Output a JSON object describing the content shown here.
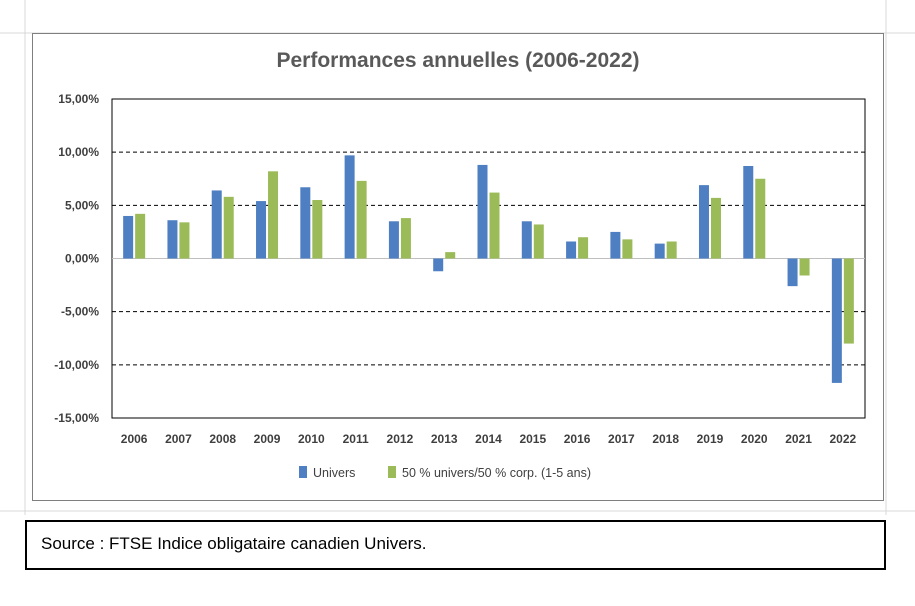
{
  "chart_data": {
    "type": "bar",
    "title": "Performances annuelles (2006-2022)",
    "categories": [
      "2006",
      "2007",
      "2008",
      "2009",
      "2010",
      "2011",
      "2012",
      "2013",
      "2014",
      "2015",
      "2016",
      "2017",
      "2018",
      "2019",
      "2020",
      "2021",
      "2022"
    ],
    "series": [
      {
        "name": "Univers",
        "color": "#4e7fc2",
        "values": [
          4.0,
          3.6,
          6.4,
          5.4,
          6.7,
          9.7,
          3.5,
          -1.2,
          8.8,
          3.5,
          1.6,
          2.5,
          1.4,
          6.9,
          8.7,
          -2.6,
          -11.7
        ]
      },
      {
        "name": "50 % univers/50 % corp. (1-5 ans)",
        "color": "#9bbb59",
        "values": [
          4.2,
          3.4,
          5.8,
          8.2,
          5.5,
          7.3,
          3.8,
          0.6,
          6.2,
          3.2,
          2.0,
          1.8,
          1.6,
          5.7,
          7.5,
          -1.6,
          -8.0
        ]
      }
    ],
    "ylim": [
      -15,
      15
    ],
    "yticks": [
      "-15,00%",
      "-10,00%",
      "-5,00%",
      "0,00%",
      "5,00%",
      "10,00%",
      "15,00%"
    ],
    "ytick_values": [
      -15,
      -10,
      -5,
      0,
      5,
      10,
      15
    ],
    "grid": "dashed horizontal at -10, -5, 5, 10",
    "legend_position": "bottom"
  },
  "source": {
    "text": "Source : FTSE Indice obligataire canadien Univers."
  }
}
